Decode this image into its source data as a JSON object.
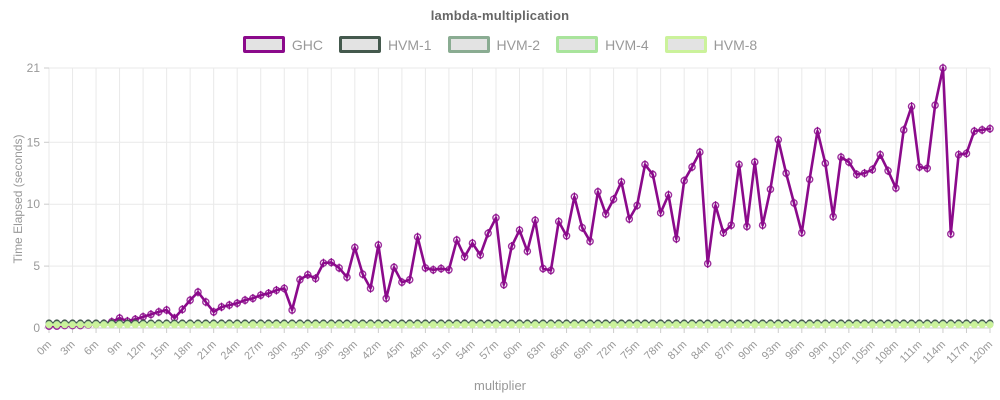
{
  "title": "lambda-multiplication",
  "axes": {
    "x_label": "multiplier",
    "y_label": "Time Elapsed (seconds)"
  },
  "legend": {
    "items": [
      {
        "label": "GHC",
        "color": "#8B0A8B"
      },
      {
        "label": "HVM-1",
        "color": "#44594D"
      },
      {
        "label": "HVM-2",
        "color": "#8AAC92"
      },
      {
        "label": "HVM-4",
        "color": "#A9E49C"
      },
      {
        "label": "HVM-8",
        "color": "#CBF29B"
      }
    ]
  },
  "colors": {
    "grid": "#e9e9e9",
    "axis": "#cccccc",
    "tick_text": "#999999",
    "title_text": "#666666",
    "legend_fill": "#e3e3e3"
  },
  "chart_data": {
    "type": "line",
    "title": "lambda-multiplication",
    "xlabel": "multiplier",
    "ylabel": "Time Elapsed (seconds)",
    "x_start": 0,
    "x_step": 1,
    "x_end": 120,
    "x_tick_step": 3,
    "x_tick_suffix": "m",
    "ylim": [
      0,
      21
    ],
    "yticks": [
      0,
      5,
      10,
      15,
      21
    ],
    "grid": true,
    "legend_position": "top",
    "series": [
      {
        "name": "GHC",
        "color": "#8B0A8B",
        "marker": "open-circle",
        "error_bar": 0.35,
        "values": [
          0.15,
          0.15,
          0.2,
          0.2,
          0.2,
          0.25,
          0.3,
          0.35,
          0.5,
          0.8,
          0.55,
          0.7,
          0.9,
          1.1,
          1.3,
          1.45,
          0.8,
          1.5,
          2.25,
          2.9,
          2.1,
          1.3,
          1.7,
          1.85,
          2.0,
          2.25,
          2.4,
          2.65,
          2.8,
          3.05,
          3.2,
          1.45,
          3.9,
          4.3,
          4.0,
          5.25,
          5.3,
          4.85,
          4.1,
          6.5,
          4.35,
          3.2,
          6.7,
          2.4,
          4.9,
          3.7,
          3.9,
          7.35,
          4.85,
          4.7,
          4.8,
          4.7,
          7.1,
          5.75,
          6.85,
          5.9,
          7.65,
          8.9,
          3.5,
          6.6,
          7.9,
          6.2,
          8.7,
          4.8,
          4.65,
          8.6,
          7.45,
          10.6,
          8.1,
          7.0,
          11.0,
          9.2,
          10.4,
          11.8,
          8.8,
          9.9,
          13.2,
          12.4,
          9.3,
          10.75,
          7.2,
          11.9,
          13.0,
          14.2,
          5.2,
          9.9,
          7.7,
          8.3,
          13.2,
          8.2,
          13.4,
          8.3,
          11.2,
          15.2,
          12.5,
          10.1,
          7.7,
          12.0,
          15.9,
          13.3,
          9.0,
          13.8,
          13.4,
          12.4,
          12.5,
          12.8,
          14.0,
          12.7,
          11.3,
          16.0,
          17.9,
          13.0,
          12.9,
          18.0,
          21.0,
          7.6,
          14.0,
          14.1,
          15.9,
          16.0,
          16.1
        ]
      },
      {
        "name": "HVM-1",
        "color": "#44594D",
        "marker": "filled-circle",
        "constant_value": 0.42,
        "n_points": 121
      },
      {
        "name": "HVM-2",
        "color": "#8AAC92",
        "marker": "filled-circle",
        "constant_value": 0.3,
        "n_points": 121
      },
      {
        "name": "HVM-4",
        "color": "#A9E49C",
        "marker": "filled-circle",
        "constant_value": 0.27,
        "n_points": 121
      },
      {
        "name": "HVM-8",
        "color": "#CBF29B",
        "marker": "filled-circle",
        "constant_value": 0.25,
        "n_points": 121
      }
    ]
  }
}
